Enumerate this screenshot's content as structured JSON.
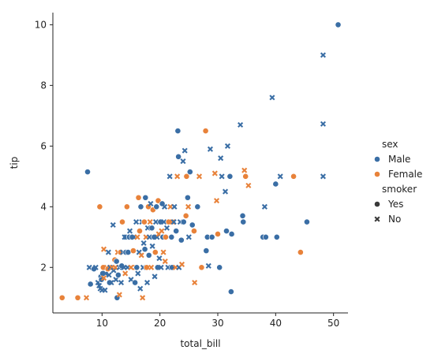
{
  "chart_data": {
    "type": "scatter",
    "xlabel": "total_bill",
    "ylabel": "tip",
    "xlim": [
      1.5,
      52.5
    ],
    "ylim": [
      0.5,
      10.4
    ],
    "xticks": [
      10,
      20,
      30,
      40,
      50
    ],
    "yticks": [
      2,
      4,
      6,
      8,
      10
    ],
    "grid": false,
    "legend_position": "right",
    "hue_title": "sex",
    "style_title": "smoker",
    "hue_levels": [
      {
        "name": "Male",
        "color": "#3a6ea5"
      },
      {
        "name": "Female",
        "color": "#e8823a"
      }
    ],
    "style_levels": [
      {
        "name": "Yes",
        "marker": "circle"
      },
      {
        "name": "No",
        "marker": "x"
      }
    ],
    "points": [
      {
        "x": 3.1,
        "y": 1.0,
        "sex": "Female",
        "smoker": "Yes"
      },
      {
        "x": 5.8,
        "y": 1.0,
        "sex": "Female",
        "smoker": "Yes"
      },
      {
        "x": 7.3,
        "y": 1.0,
        "sex": "Female",
        "smoker": "No"
      },
      {
        "x": 7.5,
        "y": 5.15,
        "sex": "Male",
        "smoker": "Yes"
      },
      {
        "x": 7.8,
        "y": 2.0,
        "sex": "Male",
        "smoker": "No"
      },
      {
        "x": 8.0,
        "y": 1.45,
        "sex": "Male",
        "smoker": "Yes"
      },
      {
        "x": 8.6,
        "y": 1.95,
        "sex": "Male",
        "smoker": "Yes"
      },
      {
        "x": 8.9,
        "y": 2.0,
        "sex": "Male",
        "smoker": "No"
      },
      {
        "x": 9.3,
        "y": 1.5,
        "sex": "Male",
        "smoker": "No"
      },
      {
        "x": 9.5,
        "y": 1.4,
        "sex": "Male",
        "smoker": "No"
      },
      {
        "x": 9.6,
        "y": 4.0,
        "sex": "Female",
        "smoker": "Yes"
      },
      {
        "x": 9.7,
        "y": 1.3,
        "sex": "Male",
        "smoker": "No"
      },
      {
        "x": 9.8,
        "y": 1.7,
        "sex": "Male",
        "smoker": "Yes"
      },
      {
        "x": 9.9,
        "y": 1.6,
        "sex": "Male",
        "smoker": "Yes"
      },
      {
        "x": 10.0,
        "y": 1.25,
        "sex": "Male",
        "smoker": "No"
      },
      {
        "x": 10.1,
        "y": 1.8,
        "sex": "Male",
        "smoker": "Yes"
      },
      {
        "x": 10.2,
        "y": 2.0,
        "sex": "Female",
        "smoker": "Yes"
      },
      {
        "x": 10.3,
        "y": 1.65,
        "sex": "Female",
        "smoker": "No"
      },
      {
        "x": 10.3,
        "y": 2.6,
        "sex": "Female",
        "smoker": "No"
      },
      {
        "x": 10.5,
        "y": 1.25,
        "sex": "Male",
        "smoker": "No"
      },
      {
        "x": 10.6,
        "y": 1.8,
        "sex": "Male",
        "smoker": "No"
      },
      {
        "x": 10.8,
        "y": 2.0,
        "sex": "Female",
        "smoker": "No"
      },
      {
        "x": 11.0,
        "y": 1.95,
        "sex": "Female",
        "smoker": "Yes"
      },
      {
        "x": 11.1,
        "y": 2.5,
        "sex": "Male",
        "smoker": "No"
      },
      {
        "x": 11.2,
        "y": 1.75,
        "sex": "Male",
        "smoker": "No"
      },
      {
        "x": 11.3,
        "y": 1.5,
        "sex": "Male",
        "smoker": "Yes"
      },
      {
        "x": 11.4,
        "y": 2.0,
        "sex": "Male",
        "smoker": "No"
      },
      {
        "x": 11.6,
        "y": 1.5,
        "sex": "Male",
        "smoker": "No"
      },
      {
        "x": 11.7,
        "y": 2.0,
        "sex": "Female",
        "smoker": "No"
      },
      {
        "x": 11.9,
        "y": 3.4,
        "sex": "Male",
        "smoker": "No"
      },
      {
        "x": 12.0,
        "y": 1.9,
        "sex": "Male",
        "smoker": "No"
      },
      {
        "x": 12.2,
        "y": 2.25,
        "sex": "Female",
        "smoker": "Yes"
      },
      {
        "x": 12.3,
        "y": 2.0,
        "sex": "Female",
        "smoker": "No"
      },
      {
        "x": 12.4,
        "y": 1.6,
        "sex": "Male",
        "smoker": "No"
      },
      {
        "x": 12.5,
        "y": 2.2,
        "sex": "Male",
        "smoker": "Yes"
      },
      {
        "x": 12.6,
        "y": 1.0,
        "sex": "Male",
        "smoker": "Yes"
      },
      {
        "x": 12.7,
        "y": 2.5,
        "sex": "Female",
        "smoker": "No"
      },
      {
        "x": 12.8,
        "y": 1.75,
        "sex": "Male",
        "smoker": "Yes"
      },
      {
        "x": 13.0,
        "y": 2.0,
        "sex": "Male",
        "smoker": "No"
      },
      {
        "x": 13.0,
        "y": 1.1,
        "sex": "Female",
        "smoker": "No"
      },
      {
        "x": 13.2,
        "y": 2.5,
        "sex": "Female",
        "smoker": "Yes"
      },
      {
        "x": 13.3,
        "y": 1.5,
        "sex": "Male",
        "smoker": "No"
      },
      {
        "x": 13.4,
        "y": 2.05,
        "sex": "Male",
        "smoker": "Yes"
      },
      {
        "x": 13.5,
        "y": 3.5,
        "sex": "Female",
        "smoker": "Yes"
      },
      {
        "x": 13.6,
        "y": 2.5,
        "sex": "Male",
        "smoker": "No"
      },
      {
        "x": 13.8,
        "y": 2.0,
        "sex": "Male",
        "smoker": "No"
      },
      {
        "x": 13.9,
        "y": 3.0,
        "sex": "Male",
        "smoker": "No"
      },
      {
        "x": 14.0,
        "y": 1.8,
        "sex": "Female",
        "smoker": "No"
      },
      {
        "x": 14.1,
        "y": 2.5,
        "sex": "Male",
        "smoker": "Yes"
      },
      {
        "x": 14.2,
        "y": 3.0,
        "sex": "Male",
        "smoker": "No"
      },
      {
        "x": 14.3,
        "y": 4.0,
        "sex": "Female",
        "smoker": "Yes"
      },
      {
        "x": 14.4,
        "y": 2.0,
        "sex": "Male",
        "smoker": "No"
      },
      {
        "x": 14.5,
        "y": 2.5,
        "sex": "Male",
        "smoker": "Yes"
      },
      {
        "x": 14.7,
        "y": 3.0,
        "sex": "Male",
        "smoker": "Yes"
      },
      {
        "x": 14.8,
        "y": 3.2,
        "sex": "Male",
        "smoker": "No"
      },
      {
        "x": 15.0,
        "y": 2.0,
        "sex": "Female",
        "smoker": "No"
      },
      {
        "x": 15.0,
        "y": 1.6,
        "sex": "Male",
        "smoker": "No"
      },
      {
        "x": 15.2,
        "y": 3.0,
        "sex": "Male",
        "smoker": "Yes"
      },
      {
        "x": 15.4,
        "y": 2.55,
        "sex": "Female",
        "smoker": "Yes"
      },
      {
        "x": 15.5,
        "y": 3.0,
        "sex": "Male",
        "smoker": "No"
      },
      {
        "x": 15.7,
        "y": 1.5,
        "sex": "Male",
        "smoker": "Yes"
      },
      {
        "x": 15.8,
        "y": 2.0,
        "sex": "Female",
        "smoker": "No"
      },
      {
        "x": 15.9,
        "y": 3.5,
        "sex": "Male",
        "smoker": "No"
      },
      {
        "x": 16.0,
        "y": 2.0,
        "sex": "Male",
        "smoker": "Yes"
      },
      {
        "x": 16.1,
        "y": 3.0,
        "sex": "Female",
        "smoker": "No"
      },
      {
        "x": 16.2,
        "y": 1.8,
        "sex": "Male",
        "smoker": "No"
      },
      {
        "x": 16.3,
        "y": 4.3,
        "sex": "Female",
        "smoker": "Yes"
      },
      {
        "x": 16.4,
        "y": 2.5,
        "sex": "Male",
        "smoker": "No"
      },
      {
        "x": 16.5,
        "y": 3.2,
        "sex": "Female",
        "smoker": "Yes"
      },
      {
        "x": 16.6,
        "y": 1.3,
        "sex": "Male",
        "smoker": "No"
      },
      {
        "x": 16.7,
        "y": 4.0,
        "sex": "Male",
        "smoker": "Yes"
      },
      {
        "x": 16.8,
        "y": 2.4,
        "sex": "Female",
        "smoker": "No"
      },
      {
        "x": 16.9,
        "y": 3.5,
        "sex": "Male",
        "smoker": "No"
      },
      {
        "x": 17.0,
        "y": 1.0,
        "sex": "Female",
        "smoker": "No"
      },
      {
        "x": 17.1,
        "y": 2.0,
        "sex": "Male",
        "smoker": "No"
      },
      {
        "x": 17.2,
        "y": 2.8,
        "sex": "Male",
        "smoker": "No"
      },
      {
        "x": 17.3,
        "y": 3.5,
        "sex": "Female",
        "smoker": "Yes"
      },
      {
        "x": 17.4,
        "y": 2.6,
        "sex": "Male",
        "smoker": "Yes"
      },
      {
        "x": 17.5,
        "y": 4.3,
        "sex": "Male",
        "smoker": "Yes"
      },
      {
        "x": 17.6,
        "y": 3.0,
        "sex": "Female",
        "smoker": "No"
      },
      {
        "x": 17.7,
        "y": 2.0,
        "sex": "Female",
        "smoker": "Yes"
      },
      {
        "x": 17.8,
        "y": 1.5,
        "sex": "Male",
        "smoker": "No"
      },
      {
        "x": 17.9,
        "y": 3.3,
        "sex": "Male",
        "smoker": "No"
      },
      {
        "x": 18.0,
        "y": 4.0,
        "sex": "Female",
        "smoker": "Yes"
      },
      {
        "x": 18.1,
        "y": 2.4,
        "sex": "Male",
        "smoker": "Yes"
      },
      {
        "x": 18.2,
        "y": 3.0,
        "sex": "Male",
        "smoker": "No"
      },
      {
        "x": 18.3,
        "y": 3.5,
        "sex": "Female",
        "smoker": "No"
      },
      {
        "x": 18.4,
        "y": 4.1,
        "sex": "Male",
        "smoker": "No"
      },
      {
        "x": 18.5,
        "y": 2.0,
        "sex": "Female",
        "smoker": "No"
      },
      {
        "x": 18.6,
        "y": 3.3,
        "sex": "Male",
        "smoker": "Yes"
      },
      {
        "x": 18.7,
        "y": 2.7,
        "sex": "Male",
        "smoker": "No"
      },
      {
        "x": 18.8,
        "y": 3.9,
        "sex": "Female",
        "smoker": "Yes"
      },
      {
        "x": 19.0,
        "y": 3.0,
        "sex": "Male",
        "smoker": "Yes"
      },
      {
        "x": 19.1,
        "y": 1.7,
        "sex": "Male",
        "smoker": "No"
      },
      {
        "x": 19.2,
        "y": 2.5,
        "sex": "Female",
        "smoker": "Yes"
      },
      {
        "x": 19.3,
        "y": 3.5,
        "sex": "Male",
        "smoker": "No"
      },
      {
        "x": 19.4,
        "y": 4.0,
        "sex": "Male",
        "smoker": "Yes"
      },
      {
        "x": 19.5,
        "y": 3.0,
        "sex": "Male",
        "smoker": "No"
      },
      {
        "x": 19.6,
        "y": 2.0,
        "sex": "Male",
        "smoker": "Yes"
      },
      {
        "x": 19.7,
        "y": 4.2,
        "sex": "Female",
        "smoker": "Yes"
      },
      {
        "x": 19.8,
        "y": 3.1,
        "sex": "Female",
        "smoker": "No"
      },
      {
        "x": 19.9,
        "y": 2.3,
        "sex": "Male",
        "smoker": "No"
      },
      {
        "x": 20.1,
        "y": 3.5,
        "sex": "Male",
        "smoker": "Yes"
      },
      {
        "x": 20.2,
        "y": 2.0,
        "sex": "Male",
        "smoker": "No"
      },
      {
        "x": 20.3,
        "y": 3.2,
        "sex": "Female",
        "smoker": "No"
      },
      {
        "x": 20.4,
        "y": 4.1,
        "sex": "Male",
        "smoker": "Yes"
      },
      {
        "x": 20.5,
        "y": 3.0,
        "sex": "Male",
        "smoker": "Yes"
      },
      {
        "x": 20.6,
        "y": 2.5,
        "sex": "Female",
        "smoker": "No"
      },
      {
        "x": 20.7,
        "y": 3.5,
        "sex": "Male",
        "smoker": "No"
      },
      {
        "x": 20.8,
        "y": 4.0,
        "sex": "Male",
        "smoker": "No"
      },
      {
        "x": 20.9,
        "y": 2.2,
        "sex": "Female",
        "smoker": "No"
      },
      {
        "x": 21.0,
        "y": 3.0,
        "sex": "Female",
        "smoker": "Yes"
      },
      {
        "x": 21.2,
        "y": 3.3,
        "sex": "Male",
        "smoker": "No"
      },
      {
        "x": 21.4,
        "y": 2.0,
        "sex": "Male",
        "smoker": "No"
      },
      {
        "x": 21.5,
        "y": 3.5,
        "sex": "Female",
        "smoker": "Yes"
      },
      {
        "x": 21.7,
        "y": 5.0,
        "sex": "Male",
        "smoker": "No"
      },
      {
        "x": 21.8,
        "y": 4.0,
        "sex": "Female",
        "smoker": "No"
      },
      {
        "x": 22.0,
        "y": 3.0,
        "sex": "Male",
        "smoker": "Yes"
      },
      {
        "x": 22.1,
        "y": 2.0,
        "sex": "Male",
        "smoker": "Yes"
      },
      {
        "x": 22.2,
        "y": 3.5,
        "sex": "Female",
        "smoker": "No"
      },
      {
        "x": 22.4,
        "y": 3.5,
        "sex": "Male",
        "smoker": "No"
      },
      {
        "x": 22.5,
        "y": 4.0,
        "sex": "Male",
        "smoker": "No"
      },
      {
        "x": 22.7,
        "y": 2.0,
        "sex": "Female",
        "smoker": "No"
      },
      {
        "x": 22.8,
        "y": 3.2,
        "sex": "Male",
        "smoker": "Yes"
      },
      {
        "x": 23.0,
        "y": 5.0,
        "sex": "Female",
        "smoker": "No"
      },
      {
        "x": 23.1,
        "y": 6.5,
        "sex": "Male",
        "smoker": "Yes"
      },
      {
        "x": 23.2,
        "y": 5.65,
        "sex": "Male",
        "smoker": "Yes"
      },
      {
        "x": 23.3,
        "y": 2.0,
        "sex": "Male",
        "smoker": "No"
      },
      {
        "x": 23.5,
        "y": 3.5,
        "sex": "Male",
        "smoker": "No"
      },
      {
        "x": 23.7,
        "y": 2.9,
        "sex": "Male",
        "smoker": "Yes"
      },
      {
        "x": 23.8,
        "y": 2.1,
        "sex": "Female",
        "smoker": "No"
      },
      {
        "x": 24.0,
        "y": 5.5,
        "sex": "Male",
        "smoker": "No"
      },
      {
        "x": 24.1,
        "y": 3.5,
        "sex": "Male",
        "smoker": "Yes"
      },
      {
        "x": 24.3,
        "y": 5.85,
        "sex": "Male",
        "smoker": "No"
      },
      {
        "x": 24.5,
        "y": 3.7,
        "sex": "Female",
        "smoker": "Yes"
      },
      {
        "x": 24.6,
        "y": 5.0,
        "sex": "Female",
        "smoker": "Yes"
      },
      {
        "x": 24.8,
        "y": 4.3,
        "sex": "Male",
        "smoker": "Yes"
      },
      {
        "x": 24.9,
        "y": 4.0,
        "sex": "Female",
        "smoker": "No"
      },
      {
        "x": 25.0,
        "y": 3.0,
        "sex": "Male",
        "smoker": "No"
      },
      {
        "x": 25.2,
        "y": 5.15,
        "sex": "Male",
        "smoker": "Yes"
      },
      {
        "x": 25.6,
        "y": 3.4,
        "sex": "Male",
        "smoker": "Yes"
      },
      {
        "x": 25.9,
        "y": 3.2,
        "sex": "Female",
        "smoker": "Yes"
      },
      {
        "x": 26.0,
        "y": 1.5,
        "sex": "Female",
        "smoker": "No"
      },
      {
        "x": 26.5,
        "y": 4.0,
        "sex": "Male",
        "smoker": "Yes"
      },
      {
        "x": 26.8,
        "y": 5.0,
        "sex": "Female",
        "smoker": "No"
      },
      {
        "x": 27.2,
        "y": 2.0,
        "sex": "Female",
        "smoker": "Yes"
      },
      {
        "x": 27.9,
        "y": 6.5,
        "sex": "Female",
        "smoker": "Yes"
      },
      {
        "x": 28.0,
        "y": 2.55,
        "sex": "Male",
        "smoker": "Yes"
      },
      {
        "x": 28.2,
        "y": 3.0,
        "sex": "Male",
        "smoker": "Yes"
      },
      {
        "x": 28.4,
        "y": 2.05,
        "sex": "Male",
        "smoker": "No"
      },
      {
        "x": 28.7,
        "y": 5.9,
        "sex": "Male",
        "smoker": "No"
      },
      {
        "x": 29.0,
        "y": 3.0,
        "sex": "Male",
        "smoker": "Yes"
      },
      {
        "x": 29.5,
        "y": 5.1,
        "sex": "Female",
        "smoker": "No"
      },
      {
        "x": 29.8,
        "y": 4.2,
        "sex": "Female",
        "smoker": "No"
      },
      {
        "x": 30.0,
        "y": 3.1,
        "sex": "Female",
        "smoker": "Yes"
      },
      {
        "x": 30.3,
        "y": 2.0,
        "sex": "Male",
        "smoker": "Yes"
      },
      {
        "x": 30.5,
        "y": 5.6,
        "sex": "Male",
        "smoker": "No"
      },
      {
        "x": 30.7,
        "y": 5.0,
        "sex": "Male",
        "smoker": "No"
      },
      {
        "x": 31.3,
        "y": 4.5,
        "sex": "Male",
        "smoker": "No"
      },
      {
        "x": 31.5,
        "y": 3.2,
        "sex": "Male",
        "smoker": "Yes"
      },
      {
        "x": 31.7,
        "y": 6.0,
        "sex": "Male",
        "smoker": "No"
      },
      {
        "x": 32.1,
        "y": 5.0,
        "sex": "Male",
        "smoker": "Yes"
      },
      {
        "x": 32.3,
        "y": 1.2,
        "sex": "Male",
        "smoker": "Yes"
      },
      {
        "x": 32.4,
        "y": 3.1,
        "sex": "Male",
        "smoker": "Yes"
      },
      {
        "x": 33.9,
        "y": 6.7,
        "sex": "Male",
        "smoker": "No"
      },
      {
        "x": 34.3,
        "y": 3.7,
        "sex": "Male",
        "smoker": "Yes"
      },
      {
        "x": 34.4,
        "y": 3.5,
        "sex": "Male",
        "smoker": "Yes"
      },
      {
        "x": 34.6,
        "y": 5.2,
        "sex": "Female",
        "smoker": "No"
      },
      {
        "x": 34.8,
        "y": 5.0,
        "sex": "Female",
        "smoker": "Yes"
      },
      {
        "x": 35.3,
        "y": 4.7,
        "sex": "Female",
        "smoker": "No"
      },
      {
        "x": 37.8,
        "y": 3.0,
        "sex": "Male",
        "smoker": "Yes"
      },
      {
        "x": 38.3,
        "y": 3.0,
        "sex": "Male",
        "smoker": "Yes"
      },
      {
        "x": 38.1,
        "y": 4.0,
        "sex": "Male",
        "smoker": "No"
      },
      {
        "x": 39.4,
        "y": 7.6,
        "sex": "Male",
        "smoker": "No"
      },
      {
        "x": 40.0,
        "y": 4.75,
        "sex": "Male",
        "smoker": "Yes"
      },
      {
        "x": 40.2,
        "y": 3.0,
        "sex": "Male",
        "smoker": "Yes"
      },
      {
        "x": 40.8,
        "y": 5.0,
        "sex": "Male",
        "smoker": "No"
      },
      {
        "x": 43.1,
        "y": 5.0,
        "sex": "Female",
        "smoker": "Yes"
      },
      {
        "x": 44.3,
        "y": 2.5,
        "sex": "Female",
        "smoker": "Yes"
      },
      {
        "x": 45.4,
        "y": 3.5,
        "sex": "Male",
        "smoker": "Yes"
      },
      {
        "x": 48.2,
        "y": 9.0,
        "sex": "Male",
        "smoker": "No"
      },
      {
        "x": 48.2,
        "y": 6.73,
        "sex": "Male",
        "smoker": "No"
      },
      {
        "x": 48.2,
        "y": 5.0,
        "sex": "Male",
        "smoker": "No"
      },
      {
        "x": 50.8,
        "y": 10.0,
        "sex": "Male",
        "smoker": "Yes"
      }
    ]
  }
}
